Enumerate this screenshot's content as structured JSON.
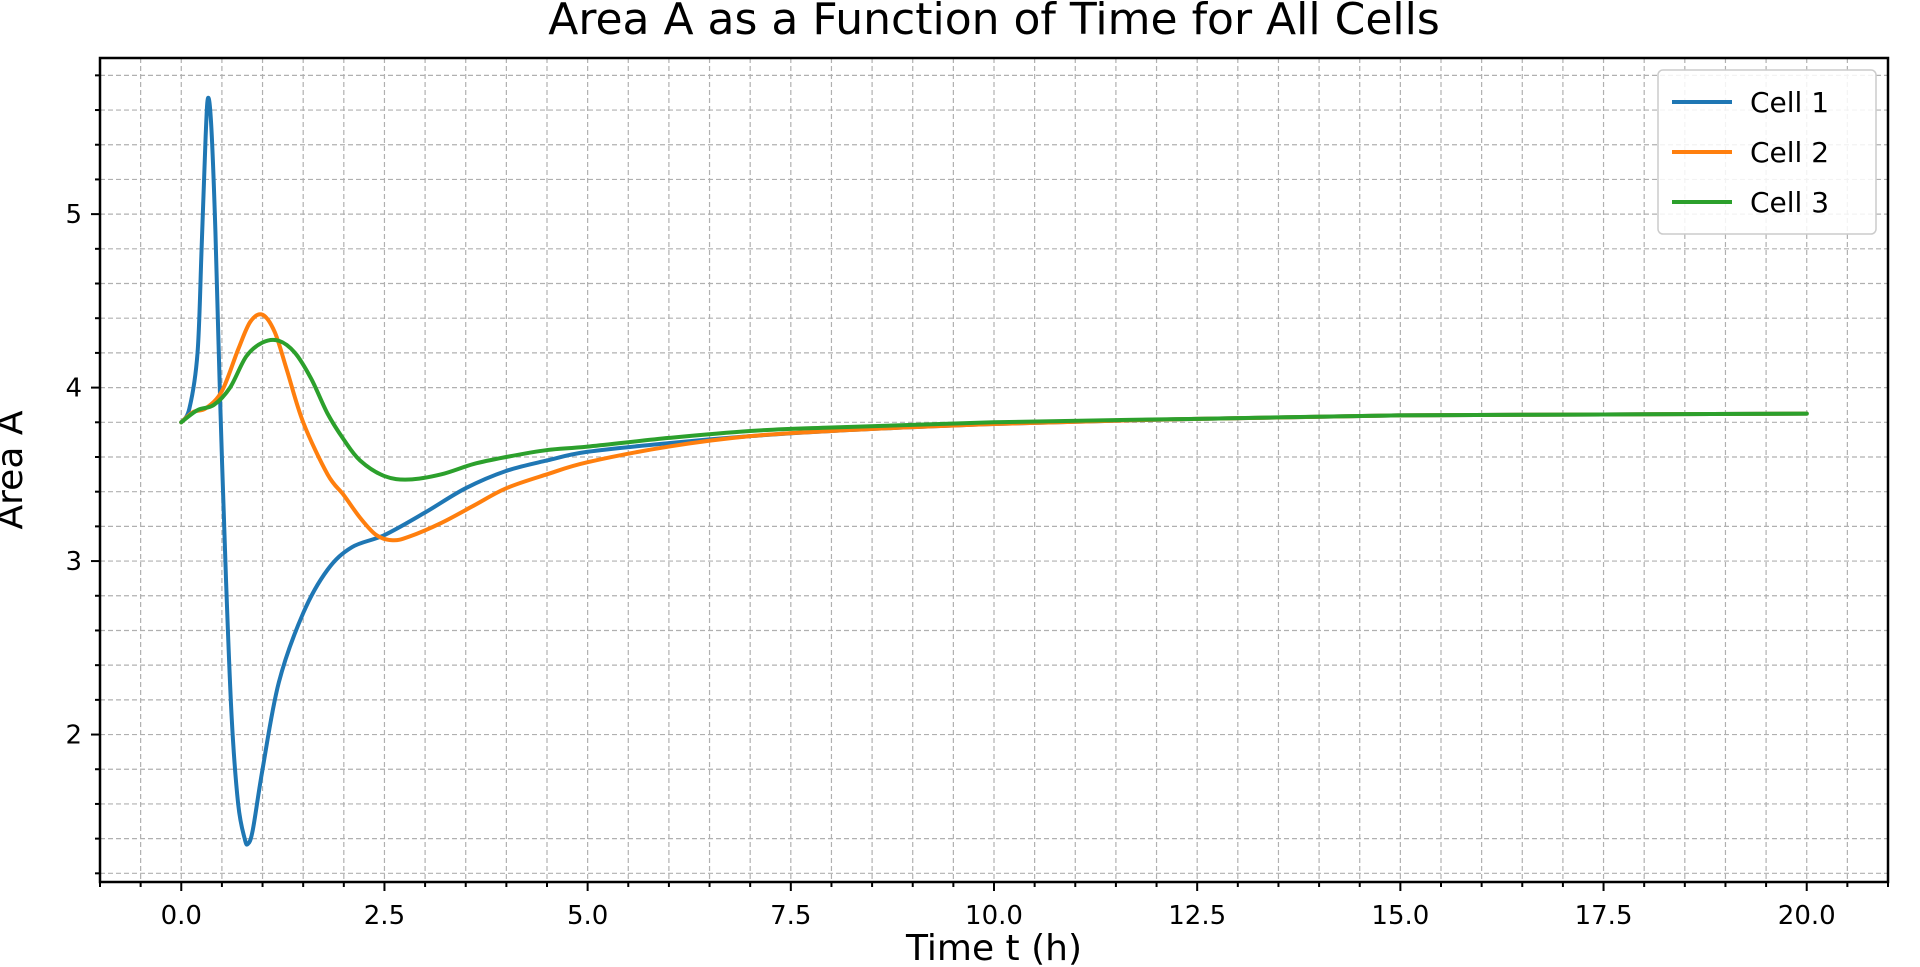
{
  "chart_data": {
    "type": "line",
    "title": "Area A as a Function of Time for All Cells",
    "xlabel": "Time t (h)",
    "ylabel": "Area A",
    "xlim": [
      -1.0,
      21.0
    ],
    "ylim": [
      1.15,
      5.9
    ],
    "x_ticks": [
      0.0,
      2.5,
      5.0,
      7.5,
      10.0,
      12.5,
      15.0,
      17.5,
      20.0
    ],
    "x_tick_labels": [
      "0.0",
      "2.5",
      "5.0",
      "7.5",
      "10.0",
      "12.5",
      "15.0",
      "17.5",
      "20.0"
    ],
    "y_ticks": [
      2,
      3,
      4,
      5
    ],
    "y_tick_labels": [
      "2",
      "3",
      "4",
      "5"
    ],
    "grid": "major and minor, dashed",
    "legend_position": "top-right",
    "series": [
      {
        "name": "Cell 1",
        "color": "#1f77b4",
        "x": [
          0,
          0.1,
          0.2,
          0.25,
          0.3,
          0.33,
          0.37,
          0.42,
          0.48,
          0.55,
          0.62,
          0.7,
          0.78,
          0.82,
          0.88,
          1.0,
          1.2,
          1.5,
          1.8,
          2.1,
          2.5,
          3.0,
          3.5,
          4.0,
          4.5,
          5.0,
          6.0,
          7.0,
          8.0,
          10.0,
          12.5,
          15.0,
          17.5,
          20.0
        ],
        "y": [
          3.8,
          3.88,
          4.2,
          4.8,
          5.45,
          5.67,
          5.5,
          4.9,
          3.9,
          2.9,
          2.1,
          1.6,
          1.4,
          1.37,
          1.45,
          1.8,
          2.3,
          2.7,
          2.95,
          3.08,
          3.15,
          3.28,
          3.42,
          3.52,
          3.58,
          3.63,
          3.68,
          3.72,
          3.75,
          3.79,
          3.82,
          3.84,
          3.845,
          3.85
        ]
      },
      {
        "name": "Cell 2",
        "color": "#ff7f0e",
        "x": [
          0,
          0.15,
          0.3,
          0.5,
          0.7,
          0.85,
          1.0,
          1.15,
          1.3,
          1.5,
          1.8,
          2.0,
          2.2,
          2.4,
          2.6,
          2.8,
          3.2,
          3.6,
          4.0,
          4.5,
          5.0,
          6.0,
          7.0,
          8.0,
          10.0,
          12.5,
          15.0,
          17.5,
          20.0
        ],
        "y": [
          3.8,
          3.86,
          3.88,
          3.98,
          4.22,
          4.38,
          4.42,
          4.32,
          4.1,
          3.8,
          3.5,
          3.38,
          3.25,
          3.15,
          3.12,
          3.14,
          3.22,
          3.32,
          3.42,
          3.5,
          3.57,
          3.66,
          3.72,
          3.75,
          3.79,
          3.82,
          3.84,
          3.845,
          3.85
        ]
      },
      {
        "name": "Cell 3",
        "color": "#2ca02c",
        "x": [
          0,
          0.2,
          0.4,
          0.6,
          0.8,
          1.0,
          1.2,
          1.4,
          1.6,
          1.8,
          2.0,
          2.2,
          2.5,
          2.8,
          3.2,
          3.6,
          4.0,
          4.5,
          5.0,
          6.0,
          7.0,
          8.0,
          10.0,
          12.5,
          15.0,
          17.5,
          20.0
        ],
        "y": [
          3.8,
          3.87,
          3.9,
          4.0,
          4.18,
          4.26,
          4.27,
          4.2,
          4.05,
          3.85,
          3.7,
          3.58,
          3.49,
          3.47,
          3.5,
          3.56,
          3.6,
          3.64,
          3.66,
          3.71,
          3.75,
          3.77,
          3.8,
          3.82,
          3.84,
          3.845,
          3.85
        ]
      }
    ]
  }
}
